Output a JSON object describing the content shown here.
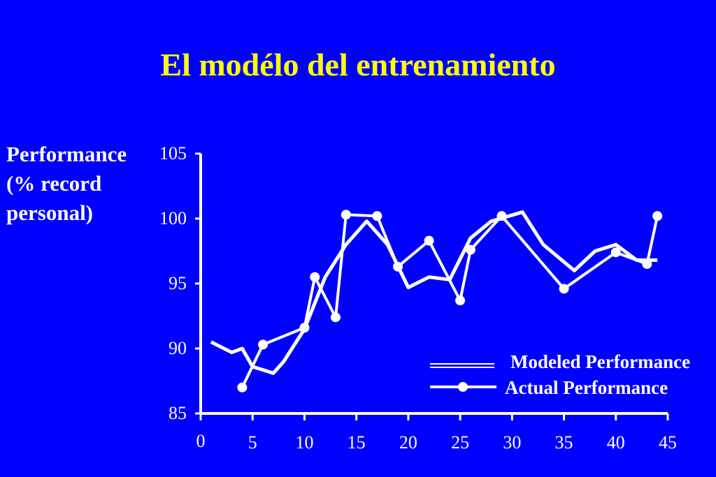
{
  "title": "El modélo del entrenamiento",
  "ylabel_lines": [
    "Performance",
    "(% record",
    "personal)"
  ],
  "chart_data": {
    "type": "line",
    "title": "El modélo del entrenamiento",
    "ylabel": "Performance (% record personal)",
    "xlabel": "",
    "xlim": [
      0,
      45
    ],
    "ylim": [
      85,
      105
    ],
    "x_ticks": [
      0,
      5,
      10,
      15,
      20,
      25,
      30,
      35,
      40,
      45
    ],
    "y_ticks": [
      85,
      90,
      95,
      100,
      105
    ],
    "grid": false,
    "legend_position": "bottom-right",
    "colors": {
      "background": "#0000ff",
      "title": "#ffff00",
      "lines": "#ffffff"
    },
    "series": [
      {
        "name": "Modeled Performance",
        "style": "double-line",
        "x": [
          1,
          3,
          4,
          5,
          7,
          8,
          10,
          12,
          14,
          16,
          18,
          20,
          22,
          24,
          26,
          28,
          31,
          33,
          36,
          38,
          40,
          42,
          44
        ],
        "y": [
          90.5,
          89.7,
          90.0,
          88.6,
          88.1,
          89.0,
          91.5,
          95.5,
          98.0,
          99.8,
          98.0,
          94.7,
          95.5,
          95.3,
          98.5,
          99.8,
          100.5,
          98.0,
          96.0,
          97.5,
          98.0,
          96.8,
          96.8
        ]
      },
      {
        "name": "Actual Performance",
        "style": "line-with-markers",
        "x": [
          4,
          6,
          10,
          11,
          13,
          14,
          17,
          19,
          22,
          25,
          26,
          29,
          35,
          40,
          43,
          44
        ],
        "y": [
          87.0,
          90.3,
          91.6,
          95.5,
          92.4,
          100.3,
          100.2,
          96.3,
          98.3,
          93.7,
          97.6,
          100.2,
          94.6,
          97.4,
          96.5,
          100.2
        ]
      }
    ]
  }
}
